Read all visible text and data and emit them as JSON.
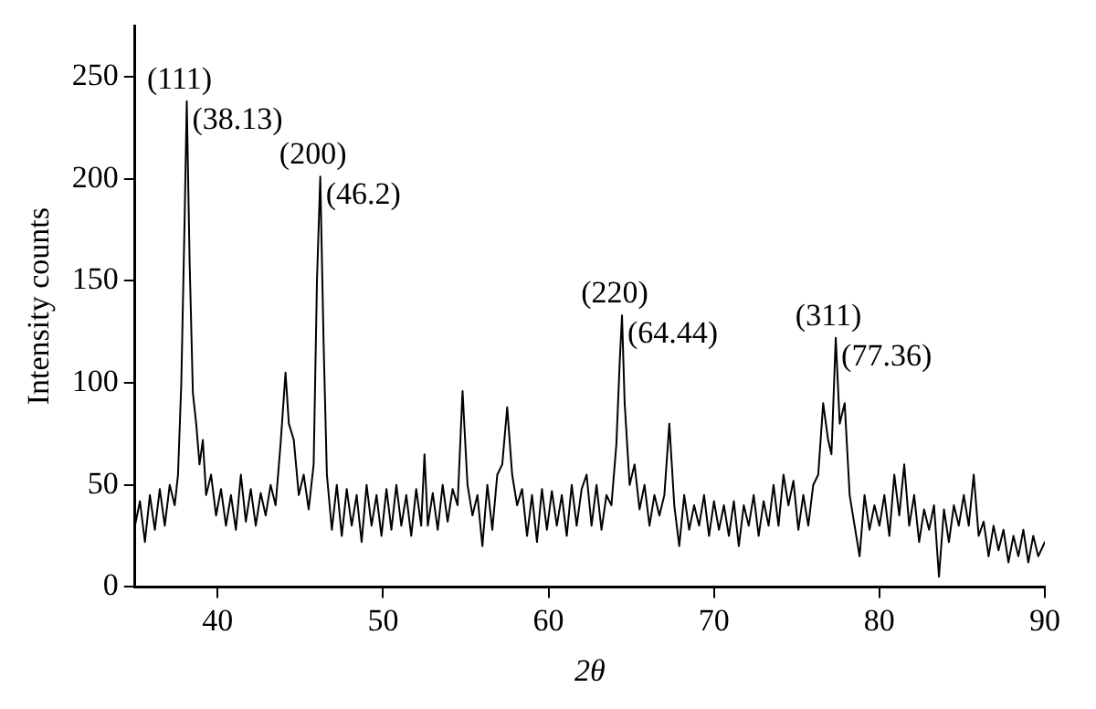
{
  "chart_data": {
    "type": "line",
    "xlabel": "2θ",
    "ylabel": "Intensity counts",
    "xlim": [
      35,
      90
    ],
    "xticks": [
      40,
      50,
      60,
      70,
      80,
      90
    ],
    "ylim": [
      0,
      275
    ],
    "yticks": [
      0,
      50,
      100,
      150,
      200,
      250
    ],
    "grid": false,
    "legend": false,
    "marker": "none",
    "line_style": "solid",
    "annotations": [
      {
        "text": "(111)",
        "x": 38.13,
        "y": 238
      },
      {
        "text": "(38.13)",
        "x": 38.13,
        "y": 238
      },
      {
        "text": "(200)",
        "x": 46.2,
        "y": 201
      },
      {
        "text": "(46.2)",
        "x": 46.2,
        "y": 201
      },
      {
        "text": "(220)",
        "x": 64.44,
        "y": 133
      },
      {
        "text": "(64.44)",
        "x": 64.44,
        "y": 133
      },
      {
        "text": "(311)",
        "x": 77.36,
        "y": 122
      },
      {
        "text": "(77.36)",
        "x": 77.36,
        "y": 122
      }
    ],
    "series": [
      {
        "color": "#000000",
        "x": [
          35,
          35.3,
          35.6,
          35.9,
          36.2,
          36.5,
          36.8,
          37.1,
          37.4,
          37.6,
          37.8,
          38.0,
          38.13,
          38.3,
          38.5,
          38.7,
          38.9,
          39.1,
          39.3,
          39.6,
          39.9,
          40.2,
          40.5,
          40.8,
          41.1,
          41.4,
          41.7,
          42.0,
          42.3,
          42.6,
          42.9,
          43.2,
          43.5,
          43.8,
          44.1,
          44.3,
          44.6,
          44.9,
          45.2,
          45.5,
          45.8,
          46.0,
          46.2,
          46.4,
          46.6,
          46.9,
          47.2,
          47.5,
          47.8,
          48.1,
          48.4,
          48.7,
          49.0,
          49.3,
          49.6,
          49.9,
          50.2,
          50.5,
          50.8,
          51.1,
          51.4,
          51.7,
          52.0,
          52.3,
          52.5,
          52.7,
          53.0,
          53.3,
          53.6,
          53.9,
          54.2,
          54.5,
          54.8,
          55.1,
          55.4,
          55.7,
          56.0,
          56.3,
          56.6,
          56.9,
          57.2,
          57.5,
          57.8,
          58.1,
          58.4,
          58.7,
          59.0,
          59.3,
          59.6,
          59.9,
          60.2,
          60.5,
          60.8,
          61.1,
          61.4,
          61.7,
          62.0,
          62.3,
          62.6,
          62.9,
          63.2,
          63.5,
          63.8,
          64.1,
          64.3,
          64.44,
          64.6,
          64.9,
          65.2,
          65.5,
          65.8,
          66.1,
          66.4,
          66.7,
          67.0,
          67.3,
          67.6,
          67.9,
          68.2,
          68.5,
          68.8,
          69.1,
          69.4,
          69.7,
          70.0,
          70.3,
          70.6,
          70.9,
          71.2,
          71.5,
          71.8,
          72.1,
          72.4,
          72.7,
          73.0,
          73.3,
          73.6,
          73.9,
          74.2,
          74.5,
          74.8,
          75.1,
          75.4,
          75.7,
          76.0,
          76.3,
          76.6,
          76.9,
          77.1,
          77.36,
          77.6,
          77.9,
          78.2,
          78.5,
          78.8,
          79.1,
          79.4,
          79.7,
          80.0,
          80.3,
          80.6,
          80.9,
          81.2,
          81.5,
          81.8,
          82.1,
          82.4,
          82.7,
          83.0,
          83.3,
          83.6,
          83.9,
          84.2,
          84.5,
          84.8,
          85.1,
          85.4,
          85.7,
          86.0,
          86.3,
          86.6,
          86.9,
          87.2,
          87.5,
          87.8,
          88.1,
          88.4,
          88.7,
          89.0,
          89.3,
          89.6,
          90
        ],
        "values": [
          30,
          42,
          22,
          45,
          28,
          48,
          30,
          50,
          40,
          55,
          100,
          180,
          238,
          160,
          95,
          80,
          60,
          72,
          45,
          55,
          35,
          48,
          30,
          45,
          28,
          55,
          32,
          48,
          30,
          46,
          35,
          50,
          40,
          70,
          105,
          80,
          72,
          45,
          55,
          38,
          60,
          150,
          201,
          120,
          55,
          28,
          50,
          25,
          48,
          30,
          45,
          22,
          50,
          30,
          45,
          25,
          48,
          28,
          50,
          30,
          45,
          25,
          48,
          30,
          65,
          30,
          46,
          28,
          50,
          32,
          48,
          40,
          96,
          50,
          35,
          45,
          20,
          50,
          28,
          55,
          60,
          88,
          55,
          40,
          48,
          25,
          45,
          22,
          48,
          28,
          47,
          30,
          45,
          25,
          50,
          30,
          48,
          55,
          30,
          50,
          28,
          45,
          40,
          70,
          110,
          133,
          90,
          50,
          60,
          38,
          50,
          30,
          45,
          35,
          45,
          80,
          40,
          20,
          45,
          28,
          40,
          30,
          45,
          25,
          42,
          28,
          40,
          25,
          42,
          20,
          40,
          30,
          45,
          25,
          42,
          30,
          50,
          30,
          55,
          40,
          52,
          28,
          45,
          30,
          50,
          55,
          90,
          72,
          65,
          122,
          80,
          90,
          45,
          30,
          15,
          45,
          28,
          40,
          30,
          45,
          25,
          55,
          35,
          60,
          30,
          45,
          22,
          38,
          28,
          40,
          5,
          38,
          22,
          40,
          30,
          45,
          30,
          55,
          25,
          32,
          15,
          30,
          18,
          28,
          12,
          25,
          15,
          28,
          12,
          25,
          15,
          22
        ]
      }
    ]
  }
}
